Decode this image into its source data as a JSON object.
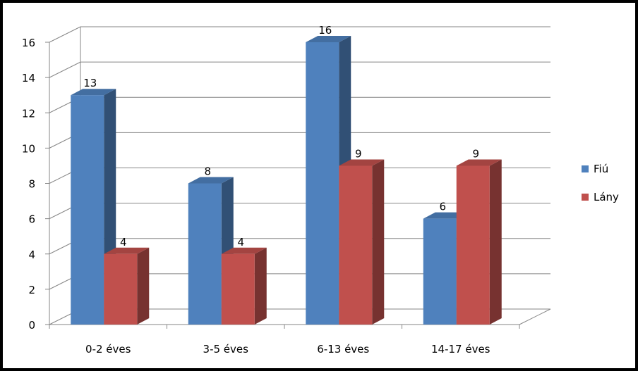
{
  "chart_data": {
    "type": "bar",
    "categories": [
      "0-2 éves",
      "3-5 éves",
      "6-13 éves",
      "14-17 éves"
    ],
    "series": [
      {
        "name": "Fiú",
        "values": [
          13,
          8,
          16,
          6
        ],
        "color": "#4F81BD"
      },
      {
        "name": "Lány",
        "values": [
          4,
          4,
          9,
          9
        ],
        "color": "#C0504D"
      }
    ],
    "y_ticks": [
      "0",
      "2",
      "4",
      "6",
      "8",
      "10",
      "12",
      "14",
      "16"
    ],
    "ylim": [
      0,
      16
    ],
    "grid": true,
    "legend_position": "right",
    "data_labels": true,
    "three_d": true
  }
}
